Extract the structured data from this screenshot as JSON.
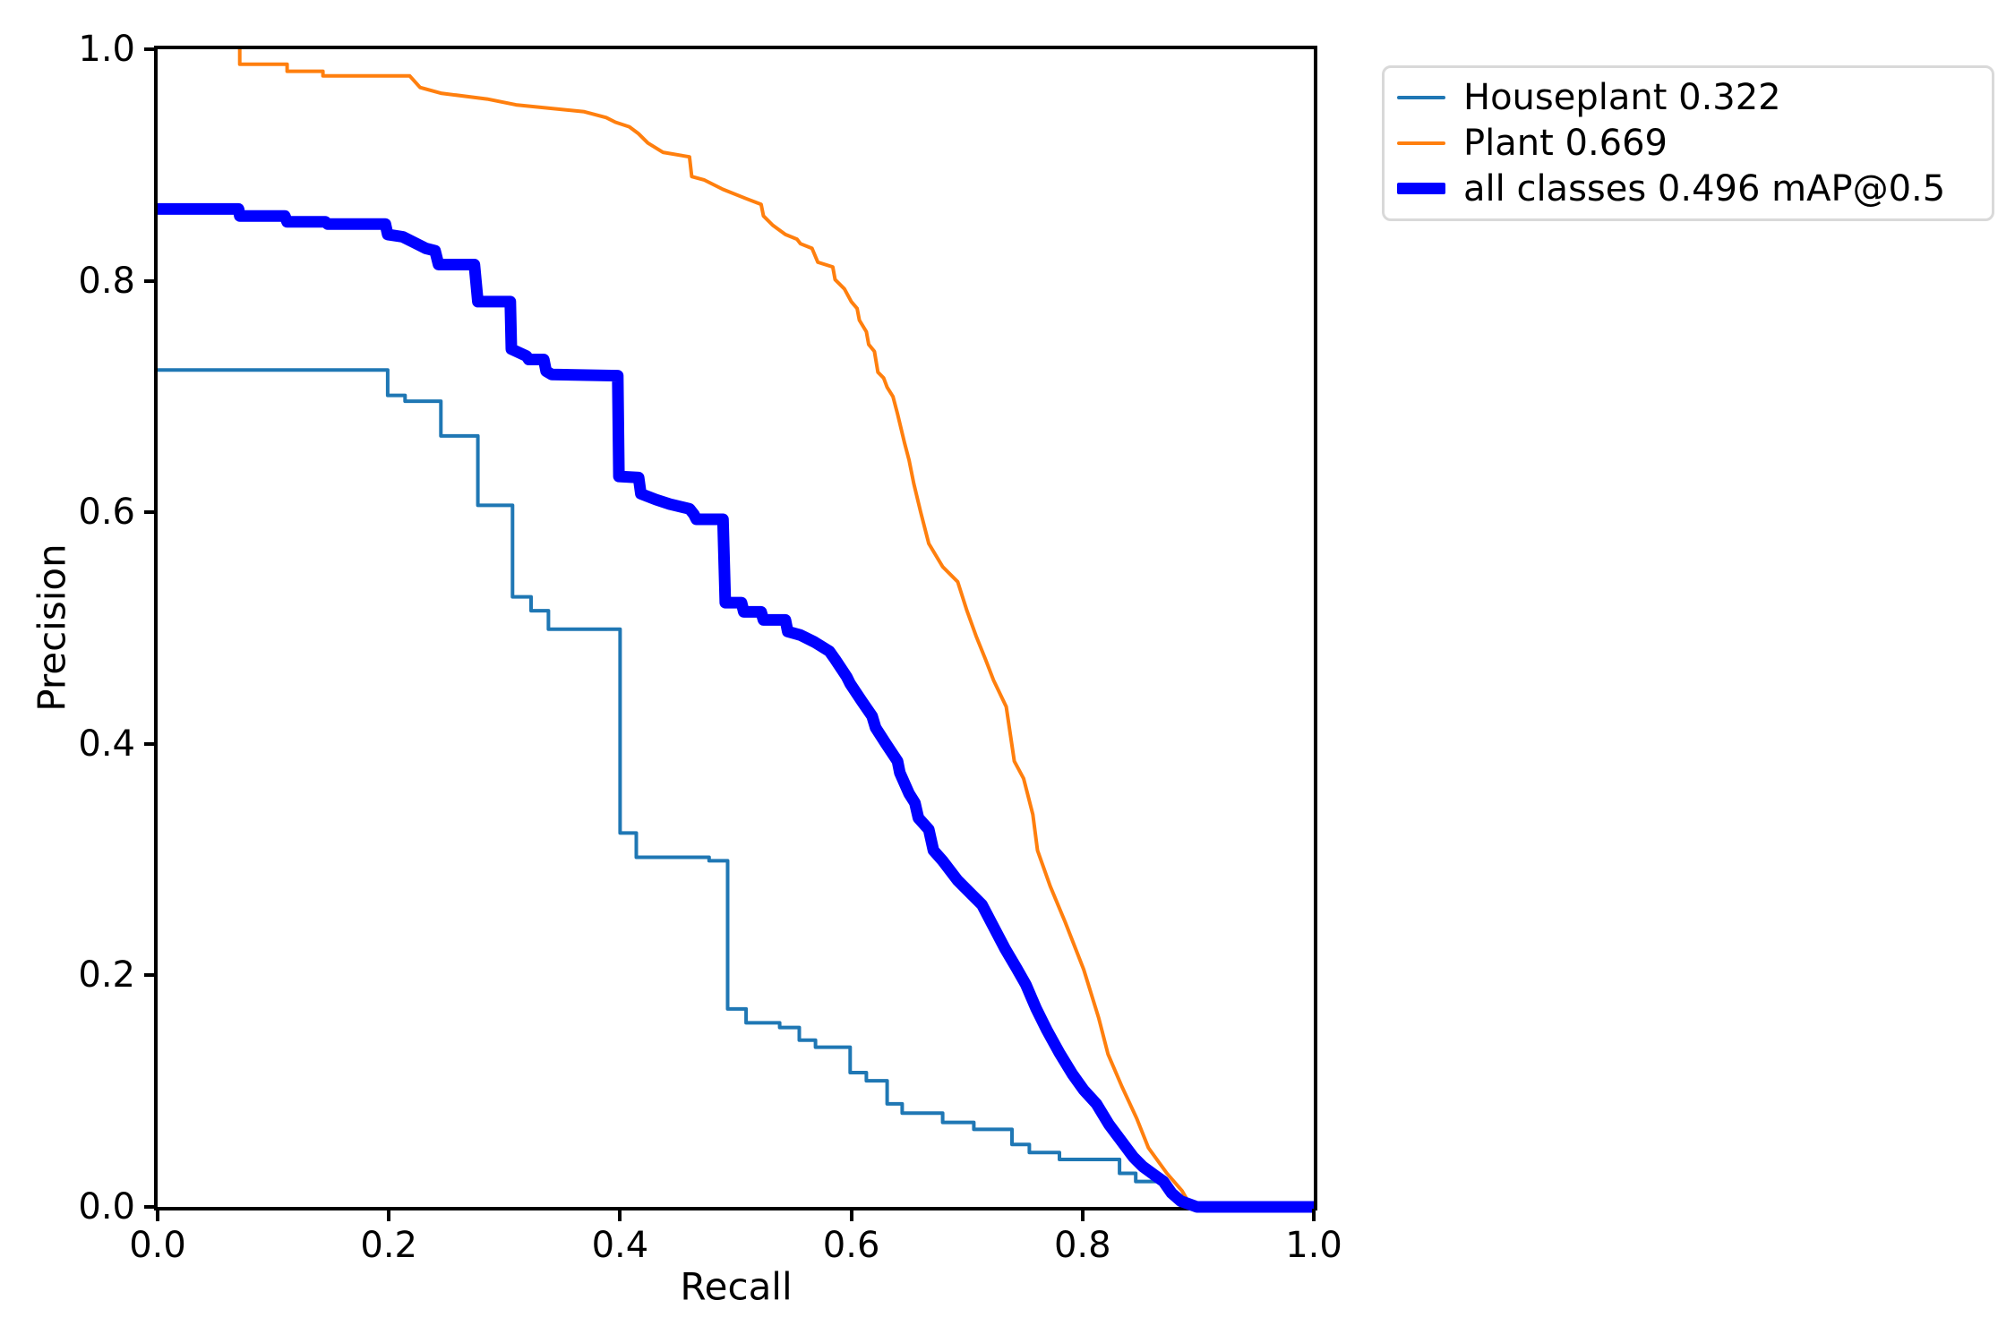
{
  "figure": {
    "background": "#ffffff",
    "axis_color": "#000000",
    "legend_border_color": "#d9d9d9"
  },
  "chart_data": {
    "type": "line",
    "title": "",
    "xlabel": "Recall",
    "ylabel": "Precision",
    "xlim": [
      0.0,
      1.0
    ],
    "ylim": [
      0.0,
      1.0
    ],
    "xtick_labels": [
      "0.0",
      "0.2",
      "0.4",
      "0.6",
      "0.8",
      "1.0"
    ],
    "ytick_labels": [
      "0.0",
      "0.2",
      "0.4",
      "0.6",
      "0.8",
      "1.0"
    ],
    "grid": false,
    "legend_position": "outside upper right",
    "series": [
      {
        "name": "Houseplant 0.322",
        "color": "#1f77b4",
        "line_width": 4,
        "points": [
          [
            0.0,
            0.723
          ],
          [
            0.199,
            0.723
          ],
          [
            0.199,
            0.701
          ],
          [
            0.214,
            0.701
          ],
          [
            0.214,
            0.696
          ],
          [
            0.245,
            0.696
          ],
          [
            0.245,
            0.666
          ],
          [
            0.277,
            0.666
          ],
          [
            0.277,
            0.606
          ],
          [
            0.307,
            0.606
          ],
          [
            0.307,
            0.527
          ],
          [
            0.323,
            0.527
          ],
          [
            0.323,
            0.515
          ],
          [
            0.338,
            0.515
          ],
          [
            0.338,
            0.499
          ],
          [
            0.4,
            0.499
          ],
          [
            0.4,
            0.323
          ],
          [
            0.414,
            0.323
          ],
          [
            0.414,
            0.302
          ],
          [
            0.477,
            0.302
          ],
          [
            0.477,
            0.299
          ],
          [
            0.493,
            0.299
          ],
          [
            0.493,
            0.171
          ],
          [
            0.509,
            0.171
          ],
          [
            0.509,
            0.159
          ],
          [
            0.538,
            0.159
          ],
          [
            0.538,
            0.155
          ],
          [
            0.555,
            0.155
          ],
          [
            0.555,
            0.144
          ],
          [
            0.569,
            0.144
          ],
          [
            0.569,
            0.138
          ],
          [
            0.599,
            0.138
          ],
          [
            0.599,
            0.116
          ],
          [
            0.613,
            0.116
          ],
          [
            0.613,
            0.109
          ],
          [
            0.631,
            0.109
          ],
          [
            0.631,
            0.089
          ],
          [
            0.644,
            0.089
          ],
          [
            0.644,
            0.081
          ],
          [
            0.679,
            0.081
          ],
          [
            0.679,
            0.073
          ],
          [
            0.706,
            0.073
          ],
          [
            0.706,
            0.067
          ],
          [
            0.739,
            0.067
          ],
          [
            0.739,
            0.054
          ],
          [
            0.754,
            0.054
          ],
          [
            0.754,
            0.047
          ],
          [
            0.78,
            0.047
          ],
          [
            0.78,
            0.041
          ],
          [
            0.832,
            0.041
          ],
          [
            0.832,
            0.029
          ],
          [
            0.846,
            0.029
          ],
          [
            0.846,
            0.022
          ],
          [
            0.872,
            0.022
          ],
          [
            0.89,
            0.0
          ]
        ]
      },
      {
        "name": "Plant 0.669",
        "color": "#ff7f0e",
        "line_width": 4,
        "points": [
          [
            0.071,
            1.0
          ],
          [
            0.071,
            0.987
          ],
          [
            0.112,
            0.987
          ],
          [
            0.112,
            0.981
          ],
          [
            0.143,
            0.981
          ],
          [
            0.143,
            0.977
          ],
          [
            0.218,
            0.977
          ],
          [
            0.227,
            0.967
          ],
          [
            0.245,
            0.962
          ],
          [
            0.285,
            0.957
          ],
          [
            0.31,
            0.952
          ],
          [
            0.369,
            0.946
          ],
          [
            0.388,
            0.941
          ],
          [
            0.396,
            0.937
          ],
          [
            0.408,
            0.933
          ],
          [
            0.416,
            0.927
          ],
          [
            0.424,
            0.919
          ],
          [
            0.437,
            0.911
          ],
          [
            0.46,
            0.907
          ],
          [
            0.462,
            0.89
          ],
          [
            0.473,
            0.887
          ],
          [
            0.489,
            0.879
          ],
          [
            0.509,
            0.871
          ],
          [
            0.522,
            0.866
          ],
          [
            0.524,
            0.856
          ],
          [
            0.532,
            0.848
          ],
          [
            0.543,
            0.84
          ],
          [
            0.553,
            0.836
          ],
          [
            0.556,
            0.832
          ],
          [
            0.566,
            0.828
          ],
          [
            0.571,
            0.816
          ],
          [
            0.584,
            0.812
          ],
          [
            0.586,
            0.801
          ],
          [
            0.594,
            0.793
          ],
          [
            0.6,
            0.782
          ],
          [
            0.605,
            0.776
          ],
          [
            0.607,
            0.766
          ],
          [
            0.613,
            0.756
          ],
          [
            0.615,
            0.745
          ],
          [
            0.62,
            0.739
          ],
          [
            0.623,
            0.721
          ],
          [
            0.628,
            0.716
          ],
          [
            0.631,
            0.708
          ],
          [
            0.636,
            0.7
          ],
          [
            0.64,
            0.685
          ],
          [
            0.646,
            0.66
          ],
          [
            0.65,
            0.645
          ],
          [
            0.654,
            0.625
          ],
          [
            0.66,
            0.6
          ],
          [
            0.667,
            0.573
          ],
          [
            0.679,
            0.553
          ],
          [
            0.692,
            0.54
          ],
          [
            0.7,
            0.515
          ],
          [
            0.708,
            0.493
          ],
          [
            0.716,
            0.473
          ],
          [
            0.723,
            0.455
          ],
          [
            0.734,
            0.432
          ],
          [
            0.741,
            0.385
          ],
          [
            0.749,
            0.37
          ],
          [
            0.757,
            0.339
          ],
          [
            0.761,
            0.308
          ],
          [
            0.772,
            0.277
          ],
          [
            0.785,
            0.246
          ],
          [
            0.801,
            0.205
          ],
          [
            0.814,
            0.163
          ],
          [
            0.822,
            0.132
          ],
          [
            0.834,
            0.104
          ],
          [
            0.847,
            0.076
          ],
          [
            0.857,
            0.051
          ],
          [
            0.873,
            0.029
          ],
          [
            0.886,
            0.014
          ],
          [
            0.894,
            0.0
          ]
        ]
      },
      {
        "name": "all classes 0.496 mAP@0.5",
        "color": "#0000ff",
        "line_width": 13,
        "points": [
          [
            0.0,
            0.862
          ],
          [
            0.07,
            0.862
          ],
          [
            0.071,
            0.856
          ],
          [
            0.11,
            0.856
          ],
          [
            0.112,
            0.851
          ],
          [
            0.145,
            0.851
          ],
          [
            0.147,
            0.849
          ],
          [
            0.197,
            0.849
          ],
          [
            0.199,
            0.84
          ],
          [
            0.212,
            0.838
          ],
          [
            0.222,
            0.833
          ],
          [
            0.232,
            0.828
          ],
          [
            0.24,
            0.826
          ],
          [
            0.243,
            0.814
          ],
          [
            0.274,
            0.814
          ],
          [
            0.277,
            0.782
          ],
          [
            0.305,
            0.782
          ],
          [
            0.306,
            0.741
          ],
          [
            0.319,
            0.735
          ],
          [
            0.321,
            0.732
          ],
          [
            0.334,
            0.732
          ],
          [
            0.336,
            0.722
          ],
          [
            0.341,
            0.719
          ],
          [
            0.398,
            0.718
          ],
          [
            0.399,
            0.631
          ],
          [
            0.416,
            0.63
          ],
          [
            0.418,
            0.616
          ],
          [
            0.431,
            0.611
          ],
          [
            0.443,
            0.607
          ],
          [
            0.46,
            0.603
          ],
          [
            0.464,
            0.598
          ],
          [
            0.466,
            0.594
          ],
          [
            0.489,
            0.594
          ],
          [
            0.491,
            0.522
          ],
          [
            0.505,
            0.522
          ],
          [
            0.507,
            0.514
          ],
          [
            0.522,
            0.514
          ],
          [
            0.524,
            0.507
          ],
          [
            0.543,
            0.507
          ],
          [
            0.545,
            0.497
          ],
          [
            0.556,
            0.494
          ],
          [
            0.568,
            0.488
          ],
          [
            0.581,
            0.48
          ],
          [
            0.586,
            0.473
          ],
          [
            0.596,
            0.458
          ],
          [
            0.599,
            0.452
          ],
          [
            0.609,
            0.437
          ],
          [
            0.618,
            0.424
          ],
          [
            0.621,
            0.414
          ],
          [
            0.63,
            0.4
          ],
          [
            0.64,
            0.385
          ],
          [
            0.642,
            0.375
          ],
          [
            0.65,
            0.357
          ],
          [
            0.655,
            0.349
          ],
          [
            0.658,
            0.336
          ],
          [
            0.667,
            0.326
          ],
          [
            0.671,
            0.308
          ],
          [
            0.679,
            0.299
          ],
          [
            0.692,
            0.282
          ],
          [
            0.703,
            0.271
          ],
          [
            0.713,
            0.261
          ],
          [
            0.723,
            0.242
          ],
          [
            0.733,
            0.223
          ],
          [
            0.743,
            0.206
          ],
          [
            0.751,
            0.192
          ],
          [
            0.76,
            0.171
          ],
          [
            0.769,
            0.153
          ],
          [
            0.78,
            0.133
          ],
          [
            0.791,
            0.115
          ],
          [
            0.801,
            0.101
          ],
          [
            0.812,
            0.089
          ],
          [
            0.823,
            0.071
          ],
          [
            0.835,
            0.055
          ],
          [
            0.844,
            0.043
          ],
          [
            0.852,
            0.035
          ],
          [
            0.863,
            0.027
          ],
          [
            0.87,
            0.022
          ],
          [
            0.877,
            0.012
          ],
          [
            0.885,
            0.005
          ],
          [
            0.899,
            0.0
          ],
          [
            1.0,
            0.0
          ]
        ]
      }
    ]
  }
}
